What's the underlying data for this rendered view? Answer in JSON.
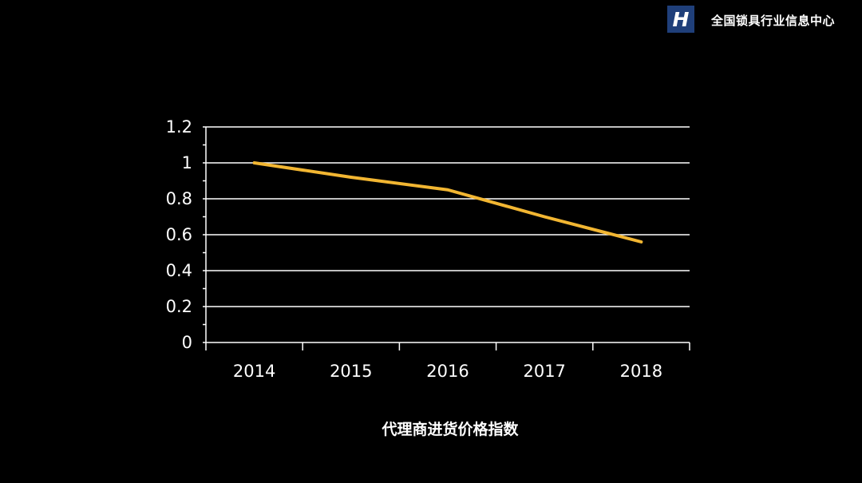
{
  "header": {
    "logo_letter": "H",
    "brand_name": "全国锁具行业信息中心"
  },
  "colors": {
    "background": "#000000",
    "foreground": "#ffffff",
    "line": "#f2b632",
    "logo_bg": "#1f3f7a"
  },
  "chart_data": {
    "type": "line",
    "title": "",
    "xlabel": "代理商进货价格指数",
    "ylabel": "",
    "categories": [
      "2014",
      "2015",
      "2016",
      "2017",
      "2018"
    ],
    "series": [
      {
        "values": [
          1.0,
          0.92,
          0.85,
          0.7,
          0.56
        ]
      }
    ],
    "ylim": [
      0,
      1.2
    ],
    "yticks": [
      0,
      0.2,
      0.4,
      0.6,
      0.8,
      1,
      1.2
    ],
    "ytick_labels": [
      "0",
      "0.2",
      "0.4",
      "0.6",
      "0.8",
      "1",
      "1.2"
    ],
    "grid": true,
    "legend": "none"
  }
}
